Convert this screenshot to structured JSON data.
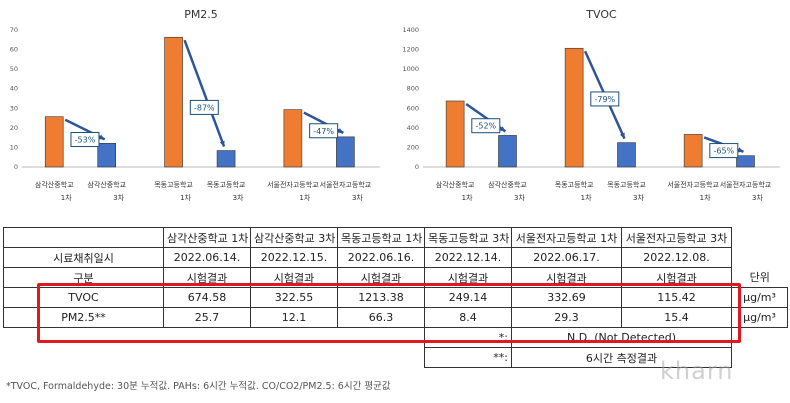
{
  "charts": [
    {
      "id": "pm25",
      "type": "bar",
      "title": "PM2.5",
      "categories": [
        "삼각산중학교 1차",
        "삼각산중학교 3차",
        "목동고등학교 1차",
        "목동고등학교 3차",
        "서울전자고등학교 1차",
        "서울전자고등학교 3차"
      ],
      "values": [
        25.7,
        12.1,
        66.3,
        8.4,
        29.3,
        15.4
      ],
      "yticks": [
        "0",
        "10",
        "20",
        "30",
        "40",
        "50",
        "60",
        "70"
      ],
      "ylim": [
        0,
        70
      ],
      "reductions": [
        "-53%",
        "-87%",
        "-47%"
      ],
      "colors": {
        "first": "#ef7d31",
        "third": "#4472c4",
        "arrow": "#2e5597"
      }
    },
    {
      "id": "tvoc",
      "type": "bar",
      "title": "TVOC",
      "categories": [
        "삼각산중학교 1차",
        "삼각산중학교 3차",
        "목동고등학교 1차",
        "목동고등학교 3차",
        "서울전자고등학교 1차",
        "서울전자고등학교 3차"
      ],
      "values": [
        674.58,
        322.55,
        1213.38,
        249.14,
        332.69,
        115.42
      ],
      "yticks": [
        "0",
        "200",
        "400",
        "600",
        "800",
        "1000",
        "1200",
        "1400"
      ],
      "ylim": [
        0,
        1400
      ],
      "reductions": [
        "-52%",
        "-79%",
        "-65%"
      ],
      "colors": {
        "first": "#ef7d31",
        "third": "#4472c4",
        "arrow": "#2e5597"
      }
    }
  ],
  "table": {
    "schools": [
      "삼각산중학교 1차",
      "삼각산중학교 3차",
      "목동고등학교 1차",
      "목동고등학교 3차",
      "서울전자고등학교 1차",
      "서울전자고등학교 3차"
    ],
    "sampling_label": "시료채취일시",
    "dates": [
      "2022.06.14.",
      "2022.12.15.",
      "2022.06.16.",
      "2022.12.14.",
      "2022.06.17.",
      "2022.12.08."
    ],
    "gubun": "구분",
    "result": "시험결과",
    "unit_header": "단위",
    "rows": [
      {
        "name": "TVOC",
        "values": [
          "674.58",
          "322.55",
          "1213.38",
          "249.14",
          "332.69",
          "115.42"
        ],
        "unit": "μg/m³"
      },
      {
        "name": "PM2.5**",
        "values": [
          "25.7",
          "12.1",
          "66.3",
          "8.4",
          "29.3",
          "15.4"
        ],
        "unit": "μg/m³"
      }
    ],
    "notes": [
      {
        "mark": "*:",
        "text": "N.D. (Not Detected)"
      },
      {
        "mark": "**:",
        "text": "6시간 측정결과"
      }
    ]
  },
  "footnote": "*TVOC, Formaldehyde: 30분 누적값.   PAHs: 6시간 누적값.    CO/CO2/PM2.5: 6시간 평균값",
  "watermark": "kharn"
}
